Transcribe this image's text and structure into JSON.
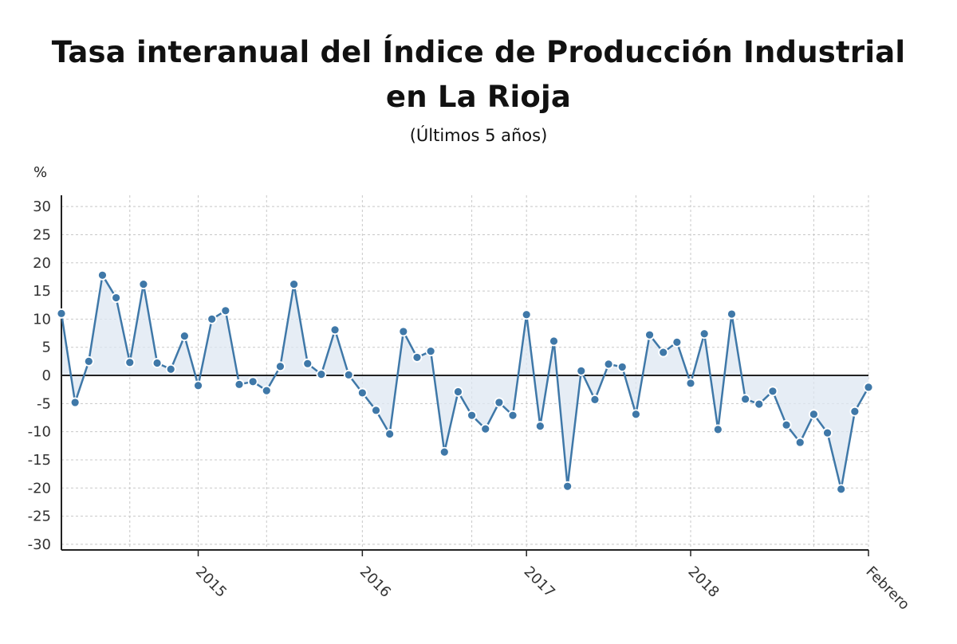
{
  "chart_data": {
    "type": "line",
    "title": "Tasa interanual del Índice de Producción Industrial en La Rioja",
    "subtitle": "(Últimos 5 años)",
    "ylabel": "%",
    "ylim": [
      -30,
      30
    ],
    "yticks": [
      30,
      25,
      20,
      15,
      10,
      5,
      0,
      -5,
      -10,
      -15,
      -20,
      -25,
      -30
    ],
    "grid": true,
    "area_fill_to_zero": true,
    "x_tick_labels": [
      "2015",
      "2016",
      "2017",
      "2018",
      "Febrero"
    ],
    "colors": {
      "line": "#3f78a8",
      "point": "#3f78a8",
      "fill": "#dde7f1",
      "zero_line": "#222222",
      "grid": "#c8c8c8"
    },
    "series": [
      {
        "values": [
          11,
          -4.8,
          2.5,
          17.8,
          13.8,
          2.3,
          16.2,
          2.2,
          1.1,
          7,
          -1.8,
          10,
          11.5,
          -1.6,
          -1.1,
          -2.7,
          1.6,
          16.2,
          2.1,
          0.2,
          8.1,
          0.1,
          -3.1,
          -6.2,
          -10.4,
          7.8,
          3.2,
          4.3,
          -13.6,
          -2.9,
          -7.1,
          -9.5,
          -4.8,
          -7.1,
          10.8,
          -9,
          6.1,
          -19.7,
          0.8,
          -4.3,
          2,
          1.5,
          -6.9,
          7.2,
          4.1,
          5.9,
          -1.4,
          7.4,
          -9.6,
          10.9,
          -4.2,
          -5.1,
          -2.8,
          -8.8,
          -11.9,
          -6.9,
          -10.2,
          -20.2,
          -6.4,
          -2.1
        ]
      }
    ]
  }
}
